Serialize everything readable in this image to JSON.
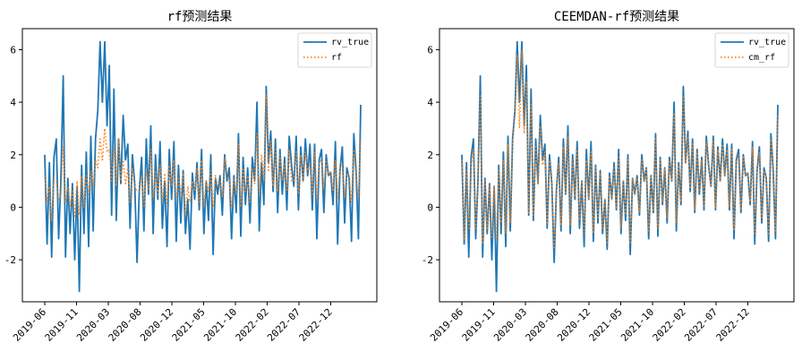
{
  "chart_data": [
    {
      "type": "line",
      "title": "rf预测结果",
      "xlabel": "",
      "ylabel": "",
      "ylim": [
        -3.6,
        6.8
      ],
      "yticks": [
        -2,
        0,
        2,
        4,
        6
      ],
      "xticks": [
        "2019-06",
        "2019-11",
        "2020-03",
        "2020-08",
        "2020-12",
        "2021-05",
        "2021-10",
        "2022-02",
        "2022-07",
        "2022-12"
      ],
      "legend": "top-right",
      "grid": false,
      "series": [
        {
          "name": "rv_true",
          "color": "#1f77b4",
          "style": "solid",
          "values": [
            2.0,
            -1.4,
            1.7,
            -1.9,
            1.9,
            2.6,
            -1.2,
            1.0,
            5.0,
            -1.9,
            1.1,
            -1.0,
            0.9,
            -2.0,
            0.8,
            -3.2,
            1.6,
            -1.0,
            2.1,
            -1.5,
            2.7,
            -0.9,
            2.6,
            3.7,
            6.3,
            4.0,
            6.3,
            3.1,
            5.4,
            -0.3,
            4.5,
            -0.5,
            2.6,
            0.9,
            3.5,
            1.8,
            2.4,
            -0.8,
            2.0,
            0.9,
            -2.1,
            0.6,
            1.9,
            -0.9,
            2.6,
            0.5,
            3.1,
            -1.0,
            2.0,
            0.3,
            2.5,
            -0.8,
            1.0,
            -1.5,
            2.2,
            0.3,
            2.5,
            -1.3,
            1.6,
            -0.6,
            1.4,
            -1.0,
            0.3,
            -1.6,
            1.3,
            0.3,
            1.7,
            -0.1,
            2.2,
            -1.0,
            1.0,
            -0.5,
            2.0,
            -1.8,
            1.1,
            0.5,
            1.2,
            -0.3,
            2.0,
            1.0,
            1.5,
            -1.2,
            1.2,
            -0.2,
            2.8,
            -1.1,
            1.9,
            0.1,
            1.5,
            -0.6,
            1.9,
            1.0,
            4.0,
            -0.9,
            1.7,
            0.1,
            4.6,
            1.7,
            2.9,
            0.6,
            2.6,
            -0.2,
            2.2,
            0.5,
            1.9,
            -0.1,
            2.7,
            1.6,
            0.8,
            2.7,
            -0.1,
            2.3,
            1.0,
            2.6,
            1.2,
            2.4,
            -0.1,
            2.4,
            -1.2,
            1.8,
            2.2,
            -0.2,
            2.0,
            1.2,
            1.3,
            0.1,
            2.5,
            -1.4,
            1.4,
            2.3,
            -0.6,
            1.5,
            1.1,
            -1.3,
            2.8,
            1.4,
            -1.2,
            3.9
          ]
        },
        {
          "name": "rf",
          "color": "#ff7f0e",
          "style": "dotted",
          "values": [
            1.2,
            0.2,
            0.8,
            -0.5,
            1.1,
            1.0,
            0.3,
            0.5,
            2.3,
            0.2,
            0.8,
            0.0,
            0.6,
            -0.4,
            1.0,
            -0.3,
            1.2,
            0.0,
            1.2,
            0.5,
            1.4,
            0.8,
            1.8,
            1.5,
            2.6,
            1.8,
            3.0,
            2.1,
            2.2,
            1.0,
            2.3,
            0.8,
            2.6,
            1.0,
            1.8,
            0.9,
            1.5,
            0.2,
            1.5,
            0.8,
            0.6,
            0.6,
            1.2,
            0.0,
            1.4,
            0.7,
            2.2,
            0.4,
            1.4,
            0.5,
            1.6,
            0.2,
            1.3,
            0.1,
            1.6,
            0.8,
            1.8,
            0.2,
            1.1,
            0.5,
            1.3,
            -0.3,
            0.8,
            0.2,
            1.0,
            0.6,
            1.5,
            0.2,
            1.8,
            0.0,
            1.0,
            0.6,
            1.4,
            0.0,
            1.2,
            0.8,
            1.0,
            0.4,
            1.9,
            1.2,
            1.0,
            0.0,
            1.1,
            0.5,
            2.4,
            0.0,
            1.5,
            0.6,
            1.2,
            0.2,
            1.5,
            0.9,
            2.8,
            0.4,
            2.0,
            1.0,
            4.3,
            1.4,
            2.5,
            0.8,
            2.2,
            0.6,
            2.0,
            1.0,
            1.7,
            0.6,
            2.2,
            1.0,
            1.0,
            2.1,
            0.5,
            2.0,
            1.0,
            2.1,
            1.4,
            1.6,
            0.5,
            2.1,
            0.3,
            1.7,
            1.8,
            0.7,
            1.8,
            1.2,
            1.4,
            0.6,
            1.8,
            0.3,
            1.5,
            1.6,
            0.4,
            1.3,
            1.2,
            0.2,
            2.2,
            1.2,
            0.4,
            2.6
          ]
        }
      ]
    },
    {
      "type": "line",
      "title": "CEEMDAN-rf预测结果",
      "xlabel": "",
      "ylabel": "",
      "ylim": [
        -3.6,
        6.8
      ],
      "yticks": [
        -2,
        0,
        2,
        4,
        6
      ],
      "xticks": [
        "2019-06",
        "2019-11",
        "2020-03",
        "2020-08",
        "2020-12",
        "2021-05",
        "2021-10",
        "2022-02",
        "2022-07",
        "2022-12"
      ],
      "legend": "top-right",
      "grid": false,
      "series": [
        {
          "name": "rv_true",
          "color": "#1f77b4",
          "style": "solid",
          "values": [
            2.0,
            -1.4,
            1.7,
            -1.9,
            1.9,
            2.6,
            -1.2,
            1.0,
            5.0,
            -1.9,
            1.1,
            -1.0,
            0.9,
            -2.0,
            0.8,
            -3.2,
            1.6,
            -1.0,
            2.1,
            -1.5,
            2.7,
            -0.9,
            2.6,
            3.7,
            6.3,
            4.0,
            6.3,
            3.1,
            5.4,
            -0.3,
            4.5,
            -0.5,
            2.6,
            0.9,
            3.5,
            1.8,
            2.4,
            -0.8,
            2.0,
            0.9,
            -2.1,
            0.6,
            1.9,
            -0.9,
            2.6,
            0.5,
            3.1,
            -1.0,
            2.0,
            0.3,
            2.5,
            -0.8,
            1.0,
            -1.5,
            2.2,
            0.3,
            2.5,
            -1.3,
            1.6,
            -0.6,
            1.4,
            -1.0,
            0.3,
            -1.6,
            1.3,
            0.3,
            1.7,
            -0.1,
            2.2,
            -1.0,
            1.0,
            -0.5,
            2.0,
            -1.8,
            1.1,
            0.5,
            1.2,
            -0.3,
            2.0,
            1.0,
            1.5,
            -1.2,
            1.2,
            -0.2,
            2.8,
            -1.1,
            1.9,
            0.1,
            1.5,
            -0.6,
            1.9,
            1.0,
            4.0,
            -0.9,
            1.7,
            0.1,
            4.6,
            1.7,
            2.9,
            0.6,
            2.6,
            -0.2,
            2.2,
            0.5,
            1.9,
            -0.1,
            2.7,
            1.6,
            0.8,
            2.7,
            -0.1,
            2.3,
            1.0,
            2.6,
            1.2,
            2.4,
            -0.1,
            2.4,
            -1.2,
            1.8,
            2.2,
            -0.2,
            2.0,
            1.2,
            1.3,
            0.1,
            2.5,
            -1.4,
            1.4,
            2.3,
            -0.6,
            1.5,
            1.1,
            -1.3,
            2.8,
            1.4,
            -1.2,
            3.9
          ]
        },
        {
          "name": "cm_rf",
          "color": "#ff7f0e",
          "style": "dotted",
          "values": [
            1.8,
            -1.2,
            1.4,
            -0.8,
            1.6,
            2.2,
            -0.8,
            1.0,
            4.3,
            -1.4,
            1.0,
            -0.8,
            0.8,
            -1.2,
            0.8,
            -1.2,
            1.4,
            -0.6,
            1.8,
            -1.0,
            2.4,
            -0.6,
            2.5,
            3.5,
            5.8,
            3.0,
            6.0,
            2.8,
            4.8,
            -0.2,
            3.9,
            -0.3,
            2.3,
            0.9,
            3.1,
            1.6,
            2.1,
            -0.6,
            1.8,
            0.9,
            -1.6,
            0.6,
            1.7,
            -0.7,
            2.3,
            0.5,
            2.7,
            -0.7,
            1.8,
            0.4,
            2.2,
            -0.5,
            1.0,
            -1.0,
            1.8,
            0.3,
            2.1,
            -1.0,
            1.5,
            -0.4,
            1.3,
            -0.8,
            0.3,
            -1.4,
            1.2,
            0.3,
            1.5,
            0.0,
            1.9,
            -0.8,
            1.0,
            -0.3,
            1.8,
            -1.4,
            1.1,
            0.5,
            1.1,
            -0.2,
            1.8,
            1.0,
            1.5,
            -0.9,
            1.2,
            -0.1,
            2.6,
            -0.8,
            1.8,
            0.2,
            1.5,
            -0.4,
            1.8,
            1.0,
            3.6,
            -0.6,
            1.6,
            0.2,
            4.2,
            1.7,
            2.7,
            0.7,
            2.4,
            -0.1,
            2.1,
            0.6,
            1.8,
            0.0,
            2.5,
            1.6,
            0.8,
            2.5,
            0.0,
            2.2,
            1.0,
            2.4,
            1.2,
            2.2,
            0.0,
            2.2,
            -0.9,
            1.7,
            2.0,
            -0.1,
            1.9,
            1.2,
            1.3,
            0.2,
            2.3,
            -1.0,
            1.4,
            2.1,
            -0.4,
            1.4,
            1.1,
            -1.0,
            2.6,
            1.4,
            -0.9,
            3.5
          ]
        }
      ]
    }
  ]
}
